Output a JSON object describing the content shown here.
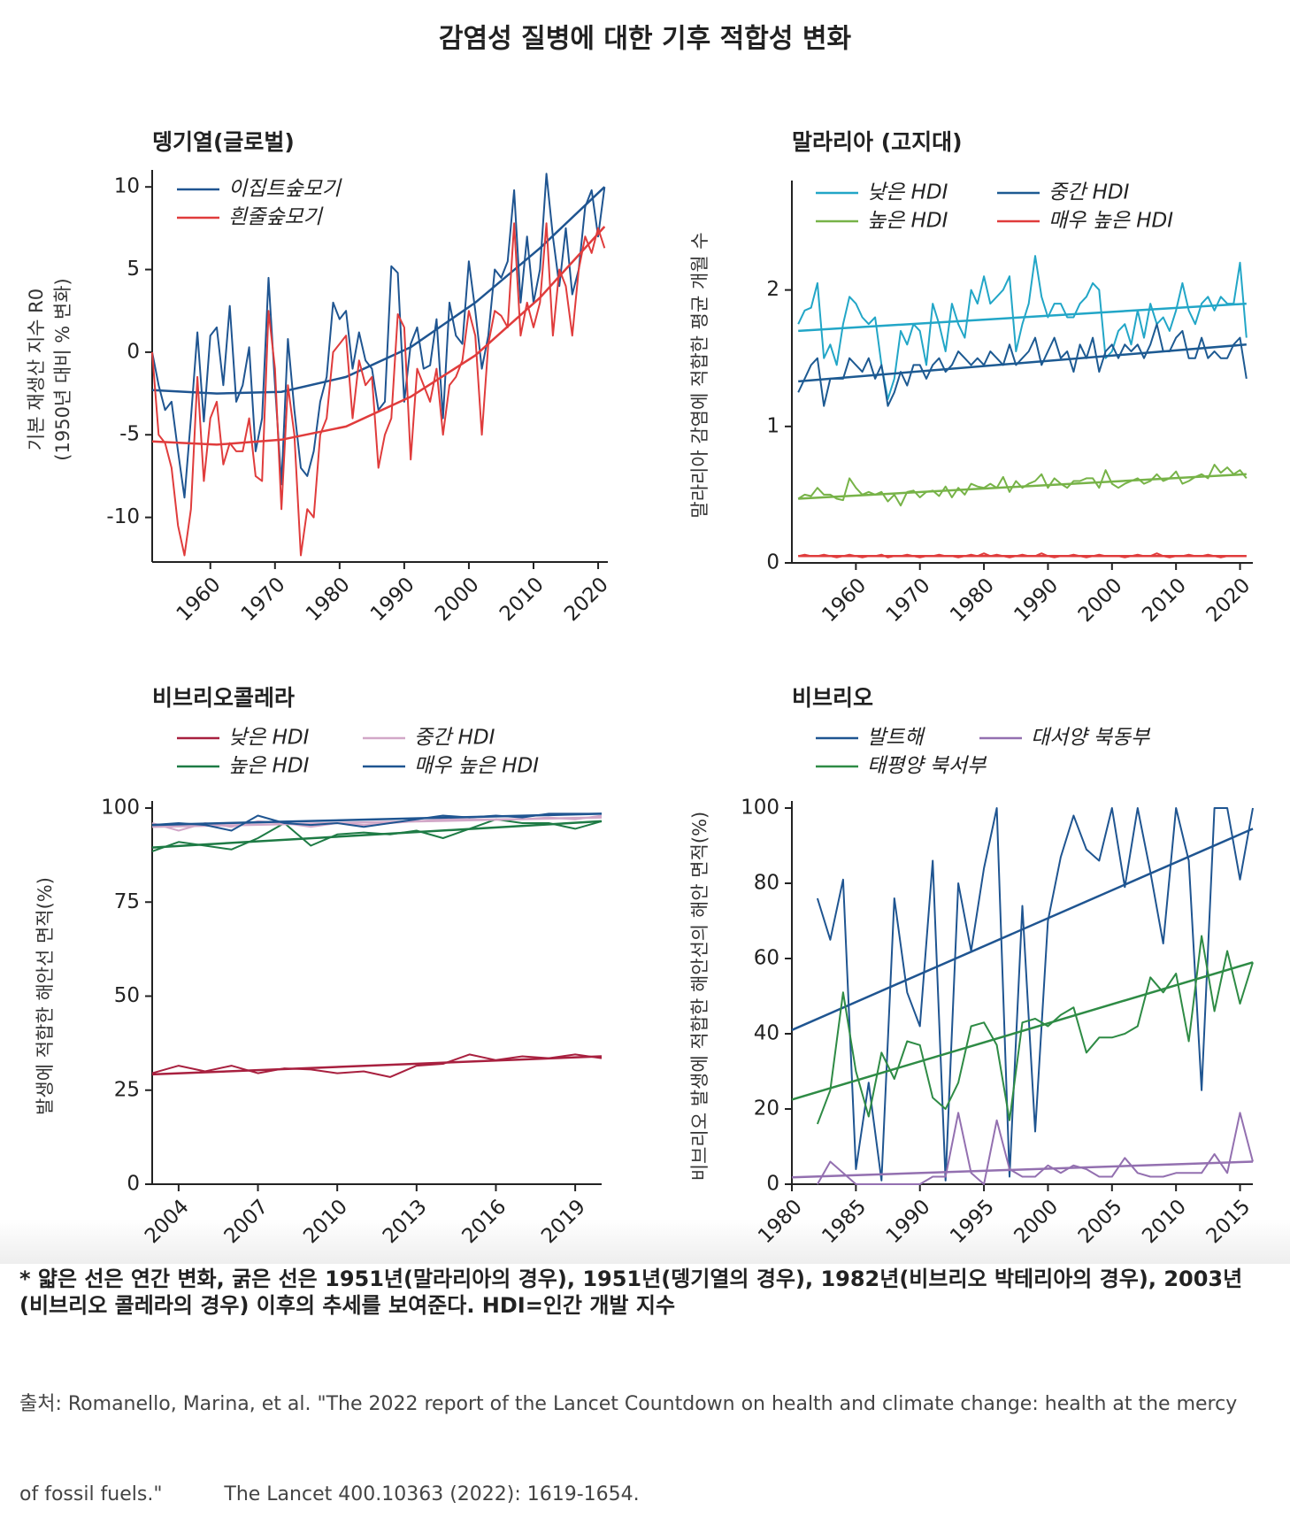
{
  "title": "감염성 질병에 대한 기후 적합성 변화",
  "chart_data": [
    {
      "type": "line",
      "title": "뎅기열(글로벌)",
      "ylabel": [
        "기본 재생산 지수 R0",
        "(1950년 대비 % 변화)"
      ],
      "x": [
        1951,
        1952,
        1953,
        1954,
        1955,
        1956,
        1957,
        1958,
        1959,
        1960,
        1961,
        1962,
        1963,
        1964,
        1965,
        1966,
        1967,
        1968,
        1969,
        1970,
        1971,
        1972,
        1973,
        1974,
        1975,
        1976,
        1977,
        1978,
        1979,
        1980,
        1981,
        1982,
        1983,
        1984,
        1985,
        1986,
        1987,
        1988,
        1989,
        1990,
        1991,
        1992,
        1993,
        1994,
        1995,
        1996,
        1997,
        1998,
        1999,
        2000,
        2001,
        2002,
        2003,
        2004,
        2005,
        2006,
        2007,
        2008,
        2009,
        2010,
        2011,
        2012,
        2013,
        2014,
        2015,
        2016,
        2017,
        2018,
        2019,
        2020,
        2021
      ],
      "xlim": [
        1951,
        2021.5
      ],
      "xticks": [
        1960,
        1970,
        1980,
        1990,
        2000,
        2010,
        2020
      ],
      "ylim": [
        -12.7,
        10.6
      ],
      "yticks": [
        10,
        5,
        0,
        -5,
        -10
      ],
      "trend_x": [
        1951,
        1961,
        1971,
        1981,
        1991,
        2001,
        2011,
        2021
      ],
      "series": [
        {
          "name": "이집트숲모기",
          "color": "#1f5591",
          "values": [
            0,
            -2,
            -3.5,
            -3,
            -6,
            -8.8,
            -4,
            1.2,
            -4.2,
            1,
            1.5,
            -2,
            2.8,
            -3,
            -2,
            0.3,
            -6,
            -4,
            4.5,
            -2,
            -8,
            0.8,
            -3.5,
            -7,
            -7.5,
            -6,
            -3,
            -1.5,
            3,
            2,
            2.5,
            -1,
            1.2,
            -0.5,
            -1,
            -3.5,
            -3,
            5.2,
            4.8,
            -3,
            0.5,
            1.5,
            -1,
            -0.8,
            2,
            -4,
            3,
            1,
            0.5,
            5.5,
            2.5,
            -1,
            1,
            5,
            4.5,
            5.5,
            9.8,
            3,
            7,
            3,
            5,
            10.8,
            7,
            4,
            7.5,
            3.5,
            5,
            8.8,
            9.8,
            7,
            10
          ],
          "trend": [
            -2.3,
            -2.5,
            -2.4,
            -1.5,
            0.3,
            3.0,
            6.3,
            10.0
          ]
        },
        {
          "name": "흰줄숲모기",
          "color": "#e03c3c",
          "values": [
            0,
            -5,
            -5.5,
            -7,
            -10.5,
            -12.3,
            -9.5,
            -1.5,
            -7.8,
            -4,
            -3,
            -6.8,
            -5.5,
            -6,
            -6,
            -4,
            -7.5,
            -7.8,
            2.5,
            -1,
            -9.5,
            -2,
            -5,
            -12.3,
            -9.5,
            -10,
            -5,
            -4,
            0,
            0.5,
            1,
            -4,
            -0.5,
            -2,
            -1.5,
            -7,
            -5,
            -4,
            2.3,
            1.5,
            -6.5,
            -1,
            -2,
            -3,
            -1,
            -5,
            -2,
            -1.5,
            -0.5,
            2.5,
            1,
            -5,
            0.5,
            2.5,
            2.2,
            1.5,
            7.8,
            1,
            3,
            1.5,
            3,
            7.8,
            1,
            5,
            4,
            1,
            5,
            7,
            6,
            7.5,
            6.3
          ],
          "trend": [
            -5.4,
            -5.6,
            -5.3,
            -4.5,
            -2.7,
            -0.2,
            3.3,
            7.6
          ]
        }
      ]
    },
    {
      "type": "line",
      "title": "말라리아 (고지대)",
      "ylabel": [
        "말라리아 감염에 적합한 평균 개월 수"
      ],
      "x": [
        1951,
        1952,
        1953,
        1954,
        1955,
        1956,
        1957,
        1958,
        1959,
        1960,
        1961,
        1962,
        1963,
        1964,
        1965,
        1966,
        1967,
        1968,
        1969,
        1970,
        1971,
        1972,
        1973,
        1974,
        1975,
        1976,
        1977,
        1978,
        1979,
        1980,
        1981,
        1982,
        1983,
        1984,
        1985,
        1986,
        1987,
        1988,
        1989,
        1990,
        1991,
        1992,
        1993,
        1994,
        1995,
        1996,
        1997,
        1998,
        1999,
        2000,
        2001,
        2002,
        2003,
        2004,
        2005,
        2006,
        2007,
        2008,
        2009,
        2010,
        2011,
        2012,
        2013,
        2014,
        2015,
        2016,
        2017,
        2018,
        2019,
        2020,
        2021
      ],
      "xlim": [
        1950,
        2022
      ],
      "xticks": [
        1960,
        1970,
        1980,
        1990,
        2000,
        2010,
        2020
      ],
      "ylim": [
        0,
        2.75
      ],
      "yticks": [
        0,
        1,
        2
      ],
      "trend_x": [
        1951,
        2021
      ],
      "series": [
        {
          "name": "낮은 HDI",
          "color": "#22a6c7",
          "values": [
            1.75,
            1.85,
            1.87,
            2.05,
            1.5,
            1.6,
            1.45,
            1.75,
            1.95,
            1.9,
            1.8,
            1.75,
            1.8,
            1.45,
            1.2,
            1.35,
            1.7,
            1.6,
            1.75,
            1.7,
            1.45,
            1.9,
            1.75,
            1.55,
            1.9,
            1.75,
            1.65,
            2.0,
            1.9,
            2.1,
            1.9,
            1.95,
            2.0,
            2.1,
            1.55,
            1.75,
            1.9,
            2.25,
            1.95,
            1.8,
            1.9,
            1.9,
            1.8,
            1.8,
            1.9,
            1.95,
            2.05,
            2.0,
            1.5,
            1.55,
            1.7,
            1.75,
            1.6,
            1.85,
            1.65,
            1.9,
            1.75,
            1.8,
            1.7,
            1.85,
            2.05,
            1.85,
            1.75,
            1.9,
            1.95,
            1.85,
            1.95,
            1.9,
            1.9,
            2.2,
            1.65
          ],
          "trend": [
            1.7,
            1.9
          ]
        },
        {
          "name": "높은 HDI",
          "color": "#77b348",
          "values": [
            0.47,
            0.5,
            0.49,
            0.55,
            0.5,
            0.5,
            0.47,
            0.46,
            0.62,
            0.55,
            0.5,
            0.52,
            0.5,
            0.52,
            0.45,
            0.5,
            0.42,
            0.52,
            0.53,
            0.48,
            0.52,
            0.53,
            0.49,
            0.56,
            0.48,
            0.55,
            0.5,
            0.58,
            0.56,
            0.55,
            0.58,
            0.55,
            0.63,
            0.52,
            0.6,
            0.55,
            0.58,
            0.6,
            0.65,
            0.55,
            0.62,
            0.58,
            0.55,
            0.6,
            0.6,
            0.62,
            0.62,
            0.55,
            0.68,
            0.58,
            0.55,
            0.58,
            0.6,
            0.62,
            0.58,
            0.6,
            0.65,
            0.6,
            0.62,
            0.67,
            0.58,
            0.6,
            0.63,
            0.65,
            0.62,
            0.72,
            0.66,
            0.7,
            0.65,
            0.68,
            0.62
          ],
          "trend": [
            0.47,
            0.65
          ]
        },
        {
          "name": "중간 HDI",
          "color": "#1d5a92",
          "values": [
            1.25,
            1.35,
            1.45,
            1.5,
            1.15,
            1.35,
            1.35,
            1.35,
            1.5,
            1.45,
            1.4,
            1.5,
            1.35,
            1.45,
            1.15,
            1.25,
            1.4,
            1.3,
            1.45,
            1.45,
            1.35,
            1.45,
            1.5,
            1.4,
            1.45,
            1.55,
            1.5,
            1.45,
            1.5,
            1.45,
            1.55,
            1.5,
            1.45,
            1.6,
            1.45,
            1.5,
            1.55,
            1.65,
            1.45,
            1.55,
            1.65,
            1.5,
            1.55,
            1.4,
            1.6,
            1.5,
            1.65,
            1.4,
            1.55,
            1.6,
            1.5,
            1.6,
            1.55,
            1.6,
            1.5,
            1.6,
            1.75,
            1.55,
            1.55,
            1.65,
            1.7,
            1.5,
            1.5,
            1.65,
            1.5,
            1.55,
            1.5,
            1.5,
            1.6,
            1.65,
            1.35
          ],
          "trend": [
            1.33,
            1.6
          ]
        },
        {
          "name": "매우 높은 HDI",
          "color": "#e03c3c",
          "values": [
            0.05,
            0.06,
            0.05,
            0.05,
            0.06,
            0.05,
            0.04,
            0.05,
            0.06,
            0.05,
            0.04,
            0.05,
            0.05,
            0.06,
            0.04,
            0.05,
            0.05,
            0.06,
            0.05,
            0.04,
            0.05,
            0.05,
            0.06,
            0.05,
            0.05,
            0.04,
            0.05,
            0.06,
            0.05,
            0.07,
            0.05,
            0.06,
            0.05,
            0.04,
            0.05,
            0.06,
            0.05,
            0.05,
            0.07,
            0.05,
            0.04,
            0.05,
            0.05,
            0.06,
            0.05,
            0.04,
            0.05,
            0.06,
            0.05,
            0.05,
            0.05,
            0.04,
            0.05,
            0.06,
            0.05,
            0.05,
            0.07,
            0.05,
            0.04,
            0.05,
            0.05,
            0.06,
            0.05,
            0.05,
            0.06,
            0.05,
            0.04,
            0.05,
            0.05,
            0.05,
            0.05
          ],
          "trend": [
            0.05,
            0.05
          ]
        }
      ]
    },
    {
      "type": "line",
      "title": "비브리오콜레라",
      "ylabel": [
        "발생에 적합한 해안선 면적(%)"
      ],
      "x": [
        2003,
        2004,
        2005,
        2006,
        2007,
        2008,
        2009,
        2010,
        2011,
        2012,
        2013,
        2014,
        2015,
        2016,
        2017,
        2018,
        2019,
        2020
      ],
      "xlim": [
        2003,
        2020
      ],
      "xticks": [
        2004,
        2007,
        2010,
        2013,
        2016,
        2019
      ],
      "ylim": [
        0,
        100
      ],
      "yticks": [
        0,
        25,
        50,
        75,
        100
      ],
      "trend_x": [
        2003,
        2020
      ],
      "series": [
        {
          "name": "낮은 HDI",
          "color": "#a8203f",
          "values": [
            29.5,
            31.5,
            30,
            31.5,
            29.5,
            30.8,
            30.5,
            29.5,
            30,
            28.5,
            31.5,
            32,
            34.5,
            33,
            34,
            33.5,
            34.5,
            33.5
          ],
          "trend": [
            29.2,
            34
          ]
        },
        {
          "name": "높은 HDI",
          "color": "#1e7b45",
          "values": [
            88.5,
            91,
            90,
            89,
            92,
            96,
            90,
            93,
            93.5,
            93,
            94,
            92,
            94.5,
            97,
            96,
            96,
            94.5,
            96.5
          ],
          "trend": [
            89.5,
            96.5
          ]
        },
        {
          "name": "중간 HDI",
          "color": "#d2a8c8",
          "values": [
            96,
            94,
            96,
            95,
            96.5,
            96,
            95,
            96,
            95.5,
            96,
            96.5,
            97,
            97,
            97,
            97,
            97.5,
            97,
            98
          ],
          "trend": [
            95,
            97.5
          ]
        },
        {
          "name": "매우 높은 HDI",
          "color": "#1f5591",
          "values": [
            95.5,
            96,
            95.5,
            94,
            98,
            96,
            95.5,
            96,
            95,
            96,
            97,
            98,
            97.5,
            98,
            97.5,
            98.5,
            98.5,
            98.5
          ],
          "trend": [
            95.5,
            98.5
          ]
        }
      ]
    },
    {
      "type": "line",
      "title": "비브리오",
      "ylabel": [
        "비브리오 발생에 적합한 해안선의 해안 면적(%)"
      ],
      "x": [
        1982,
        1983,
        1984,
        1985,
        1986,
        1987,
        1988,
        1989,
        1990,
        1991,
        1992,
        1993,
        1994,
        1995,
        1996,
        1997,
        1998,
        1999,
        2000,
        2001,
        2002,
        2003,
        2004,
        2005,
        2006,
        2007,
        2008,
        2009,
        2010,
        2011,
        2012,
        2013,
        2014,
        2015,
        2016
      ],
      "xlim": [
        1980,
        2016
      ],
      "xticks": [
        1980,
        1985,
        1990,
        1995,
        2000,
        2005,
        2010,
        2015
      ],
      "ylim": [
        0,
        100
      ],
      "yticks": [
        0,
        20,
        40,
        60,
        80,
        100
      ],
      "trend_x": [
        1980,
        2016
      ],
      "series": [
        {
          "name": "발트해",
          "color": "#1f5591",
          "values": [
            76,
            65,
            81,
            4,
            27,
            1,
            76,
            51,
            42,
            86,
            1,
            80,
            62,
            84,
            100,
            2,
            74,
            14,
            70,
            87,
            98,
            89,
            86,
            100,
            79,
            100,
            83,
            64,
            100,
            86,
            25,
            100,
            100,
            81,
            100
          ],
          "trend": [
            41,
            94.5
          ]
        },
        {
          "name": "태평양 북서부",
          "color": "#2e8b45",
          "values": [
            16,
            25,
            51,
            30,
            18,
            35,
            28,
            38,
            37,
            23,
            20,
            27,
            42,
            43,
            37,
            17,
            43,
            44,
            42,
            45,
            47,
            35,
            39,
            39,
            40,
            42,
            55,
            51,
            56,
            38,
            66,
            46,
            62,
            48,
            59
          ],
          "trend": [
            22.5,
            59
          ]
        },
        {
          "name": "대서양 북동부",
          "color": "#9370b0",
          "values": [
            0,
            6,
            3,
            0,
            0,
            0,
            0,
            0,
            0,
            2,
            2,
            19,
            3,
            0,
            17,
            4,
            2,
            2,
            5,
            3,
            5,
            4,
            2,
            2,
            7,
            3,
            2,
            2,
            3,
            3,
            3,
            8,
            3,
            19,
            6
          ],
          "trend": [
            1.8,
            6
          ]
        }
      ]
    }
  ],
  "footnote": "* 얇은 선은 연간 변화, 굵은 선은 1951년(말라리아의 경우), 1951년(뎅기열의 경우), 1982년(비브리오 박테리아의 경우), 2003년(비브리오 콜레라의 경우) 이후의 추세를 보여준다. HDI=인간 개발 지수",
  "source": [
    "출처: Romanello, Marina, et al. \"The 2022 report of the Lancet Countdown on health and climate change: health at the mercy",
    "of fossil fuels.\"          The Lancet 400.10363 (2022): 1619-1654."
  ]
}
